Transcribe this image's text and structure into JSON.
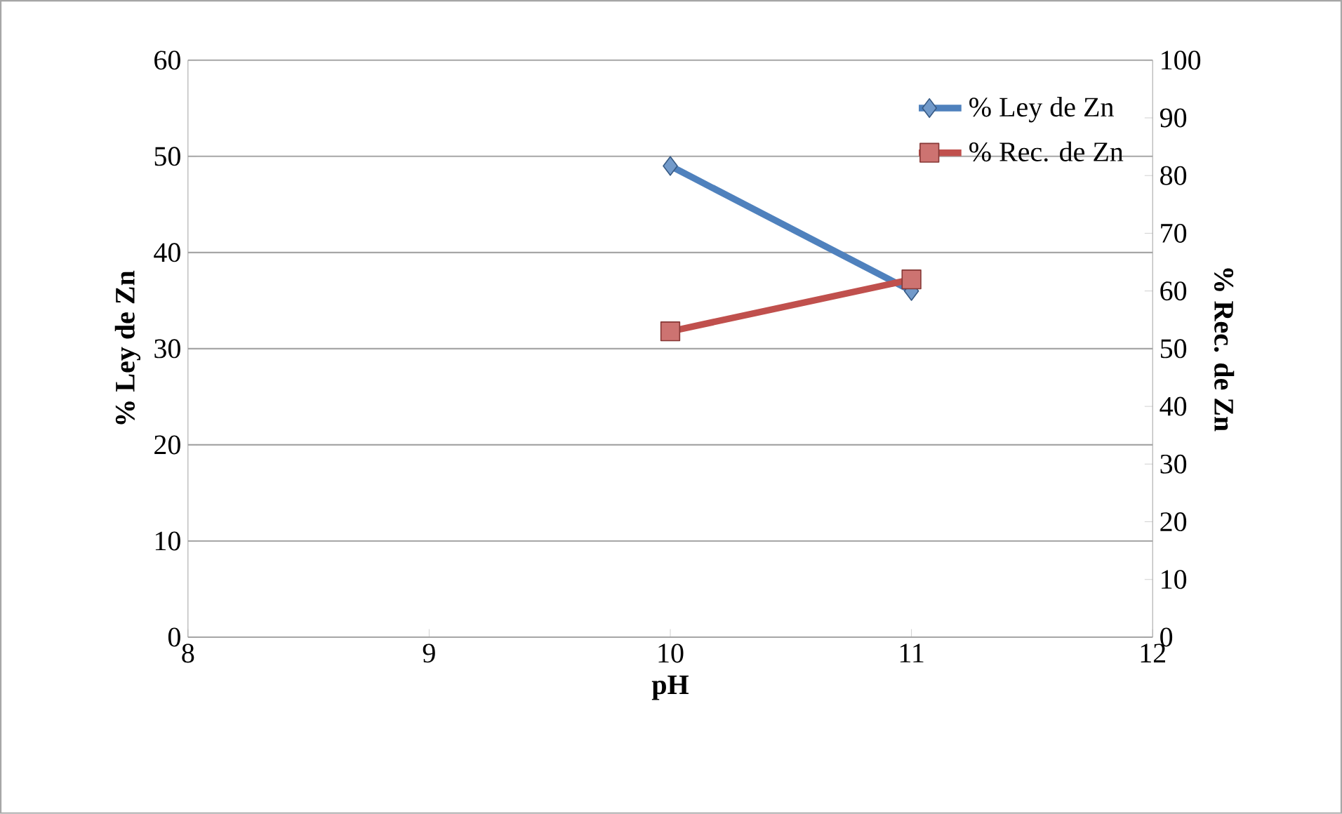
{
  "chart_data": {
    "type": "line",
    "xlabel": "pH",
    "ylabel": "% Ley de Zn",
    "y2label": "% Rec. de Zn",
    "x": [
      10,
      11
    ],
    "series": [
      {
        "name": "% Ley de Zn",
        "color": "#4f81bd",
        "values": [
          49,
          36
        ],
        "marker": "diamond"
      },
      {
        "name": "% Rec. de Zn",
        "color": "#c0504d",
        "values": [
          53,
          62
        ],
        "marker": "square",
        "axis": "y2"
      }
    ],
    "xlim": [
      8,
      12
    ],
    "xticks": [
      8,
      9,
      10,
      11,
      12
    ],
    "ylim": [
      0,
      60
    ],
    "yticks": [
      0,
      10,
      20,
      30,
      40,
      50,
      60
    ],
    "y2lim": [
      0,
      100
    ],
    "y2ticks": [
      0,
      10,
      20,
      30,
      40,
      50,
      60,
      70,
      80,
      90,
      100
    ],
    "grid": "y",
    "legend": "top right",
    "line_style": "solid"
  }
}
